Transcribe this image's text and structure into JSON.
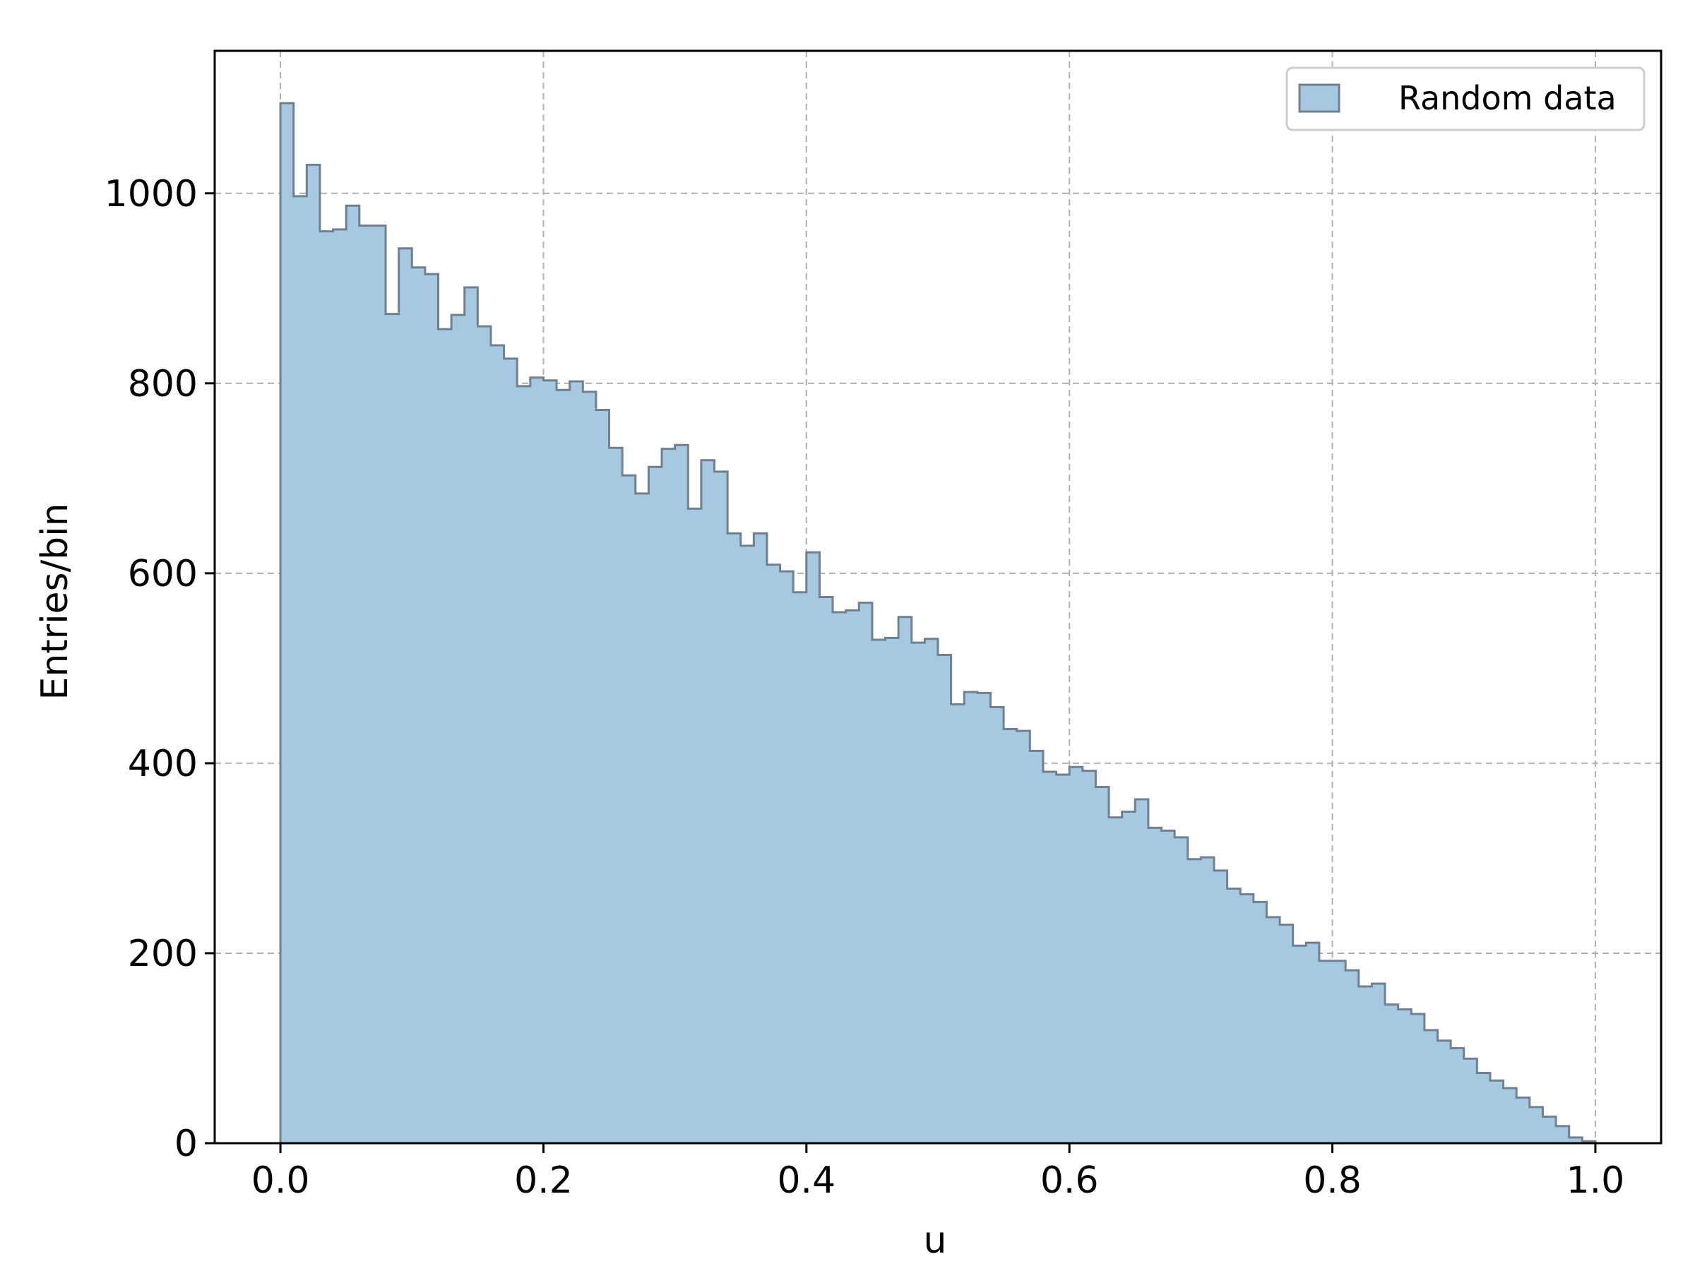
{
  "chart_data": {
    "type": "histogram",
    "title": "",
    "xlabel": "u",
    "ylabel": "Entries/bin",
    "xlim": [
      -0.05,
      1.05
    ],
    "ylim": [
      0,
      1150
    ],
    "x_ticks": [
      0.0,
      0.2,
      0.4,
      0.6,
      0.8,
      1.0
    ],
    "x_tick_labels": [
      "0.0",
      "0.2",
      "0.4",
      "0.6",
      "0.8",
      "1.0"
    ],
    "y_ticks": [
      0,
      200,
      400,
      600,
      800,
      1000
    ],
    "y_tick_labels": [
      "0",
      "200",
      "400",
      "600",
      "800",
      "1000"
    ],
    "grid": true,
    "legend": {
      "position": "top-right",
      "entries": [
        "Random data"
      ]
    },
    "colors": {
      "fill": "#a6c8e0",
      "edge": "#708090",
      "grid": "#b0b0b0"
    },
    "bin_range": [
      0.0,
      1.0
    ],
    "series": [
      {
        "name": "Random data",
        "values": [
          1095,
          997,
          1030,
          960,
          962,
          987,
          966,
          966,
          873,
          942,
          922,
          915,
          857,
          872,
          901,
          860,
          840,
          826,
          797,
          806,
          803,
          793,
          802,
          791,
          772,
          732,
          703,
          684,
          712,
          731,
          735,
          668,
          719,
          707,
          642,
          629,
          642,
          609,
          602,
          580,
          622,
          575,
          559,
          561,
          569,
          530,
          532,
          554,
          527,
          531,
          514,
          462,
          475,
          474,
          459,
          436,
          434,
          413,
          391,
          388,
          396,
          392,
          375,
          343,
          349,
          362,
          332,
          329,
          322,
          299,
          301,
          287,
          268,
          262,
          254,
          238,
          230,
          208,
          211,
          192,
          192,
          182,
          165,
          168,
          146,
          141,
          136,
          119,
          108,
          100,
          89,
          74,
          66,
          58,
          48,
          38,
          28,
          18,
          6,
          2
        ]
      }
    ]
  }
}
